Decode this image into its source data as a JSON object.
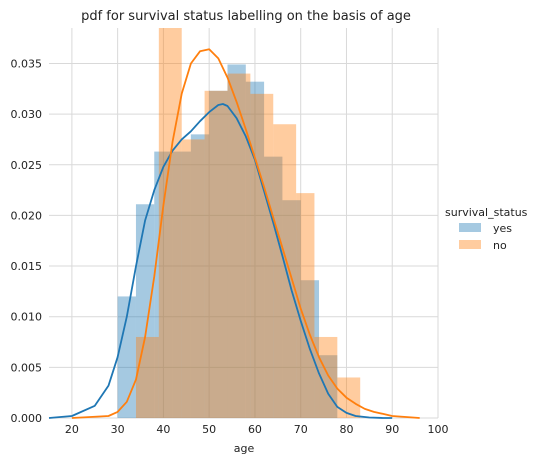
{
  "chart_data": {
    "type": "bar",
    "title": "pdf for survival status labelling on the basis of age",
    "xlabel": "age",
    "ylabel": "",
    "xlim": [
      15,
      100
    ],
    "ylim": [
      0,
      0.0385
    ],
    "xticks": [
      20,
      30,
      40,
      50,
      60,
      70,
      80,
      90,
      100
    ],
    "yticks": [
      0.0,
      0.005,
      0.01,
      0.015,
      0.02,
      0.025,
      0.03,
      0.035
    ],
    "ytick_labels": [
      "0.000",
      "0.005",
      "0.010",
      "0.015",
      "0.020",
      "0.025",
      "0.030",
      "0.035"
    ],
    "grid": true,
    "legend": {
      "title": "survival_status",
      "placement": "right"
    },
    "series": [
      {
        "name": "yes",
        "color": "#1f77b4",
        "hist_edges": [
          30,
          34,
          38,
          42,
          46,
          50,
          54,
          58,
          62,
          66,
          70,
          74,
          78
        ],
        "hist_values": [
          0.012,
          0.0211,
          0.0263,
          0.0263,
          0.028,
          0.0323,
          0.0349,
          0.0332,
          0.0258,
          0.0215,
          0.0136,
          0.0062
        ],
        "kde_x": [
          15,
          20,
          25,
          28,
          30,
          32,
          34,
          36,
          38,
          40,
          42,
          44,
          46,
          48,
          50,
          52,
          53,
          54,
          56,
          58,
          60,
          62,
          64,
          66,
          68,
          70,
          72,
          74,
          76,
          78,
          80,
          82,
          85,
          88,
          90
        ],
        "kde_y": [
          0.0,
          0.0002,
          0.0012,
          0.0032,
          0.006,
          0.01,
          0.015,
          0.0195,
          0.0225,
          0.0248,
          0.0264,
          0.0275,
          0.0283,
          0.0293,
          0.0302,
          0.0309,
          0.031,
          0.0308,
          0.0296,
          0.0278,
          0.0255,
          0.0224,
          0.0193,
          0.016,
          0.0126,
          0.0096,
          0.0068,
          0.0044,
          0.0024,
          0.0011,
          0.0005,
          0.0002,
          5e-05,
          0.0,
          0.0
        ]
      },
      {
        "name": "no",
        "color": "#ff7f0e",
        "hist_edges": [
          34,
          39,
          44,
          49,
          54,
          59,
          64,
          69,
          73,
          78,
          83
        ],
        "hist_values": [
          0.008,
          0.0385,
          0.0275,
          0.0323,
          0.034,
          0.032,
          0.029,
          0.0222,
          0.008,
          0.004
        ],
        "kde_x": [
          20,
          28,
          30,
          32,
          34,
          36,
          38,
          40,
          42,
          44,
          46,
          48,
          50,
          52,
          54,
          56,
          58,
          60,
          62,
          64,
          66,
          68,
          70,
          72,
          74,
          76,
          78,
          80,
          82,
          84,
          86,
          88,
          90,
          93,
          96
        ],
        "kde_y": [
          0.0,
          0.0002,
          0.0006,
          0.0016,
          0.0038,
          0.008,
          0.014,
          0.021,
          0.0273,
          0.032,
          0.035,
          0.0362,
          0.0364,
          0.0355,
          0.0336,
          0.0312,
          0.0285,
          0.0257,
          0.0228,
          0.0198,
          0.0168,
          0.0138,
          0.0108,
          0.0082,
          0.006,
          0.0042,
          0.0029,
          0.002,
          0.0014,
          0.0009,
          0.0006,
          0.0004,
          0.0002,
          0.0001,
          0.0
        ]
      }
    ]
  }
}
